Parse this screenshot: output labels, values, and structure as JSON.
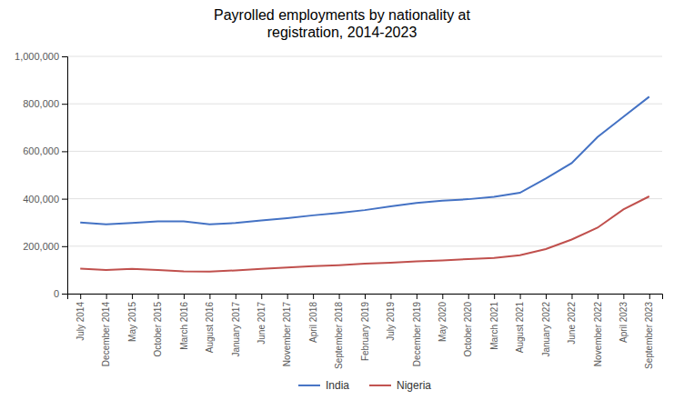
{
  "chart_data": {
    "type": "line",
    "title": "Payrolled employments by nationality at\nregistration, 2014-2023",
    "categories": [
      "July 2014",
      "December 2014",
      "May 2015",
      "October 2015",
      "March 2016",
      "August 2016",
      "January 2017",
      "June 2017",
      "November 2017",
      "April 2018",
      "September 2018",
      "February 2019",
      "July 2019",
      "December 2019",
      "May 2020",
      "October 2020",
      "March 2021",
      "August 2021",
      "January 2022",
      "June 2022",
      "November 2022",
      "April 2023",
      "September 2023"
    ],
    "series": [
      {
        "name": "India",
        "color": "#4472C4",
        "values": [
          300000,
          292000,
          298000,
          305000,
          305000,
          292000,
          298000,
          308000,
          318000,
          330000,
          340000,
          352000,
          368000,
          382000,
          392000,
          398000,
          408000,
          425000,
          485000,
          550000,
          660000,
          745000,
          830000
        ]
      },
      {
        "name": "Nigeria",
        "color": "#C0504D",
        "values": [
          105000,
          100000,
          104000,
          100000,
          94000,
          93000,
          98000,
          104000,
          110000,
          116000,
          120000,
          126000,
          130000,
          136000,
          140000,
          146000,
          150000,
          162000,
          188000,
          228000,
          278000,
          355000,
          410000
        ]
      }
    ],
    "ylim": [
      0,
      1000000
    ],
    "yticks": [
      0,
      {
        "value": 200000,
        "label": "200,000"
      },
      {
        "value": 400000,
        "label": "400,000"
      },
      {
        "value": 600000,
        "label": "600,000"
      },
      {
        "value": 800000,
        "label": "800,000"
      },
      {
        "value": 1000000,
        "label": "1,000,000"
      }
    ],
    "grid": true,
    "legend": "bottom"
  }
}
